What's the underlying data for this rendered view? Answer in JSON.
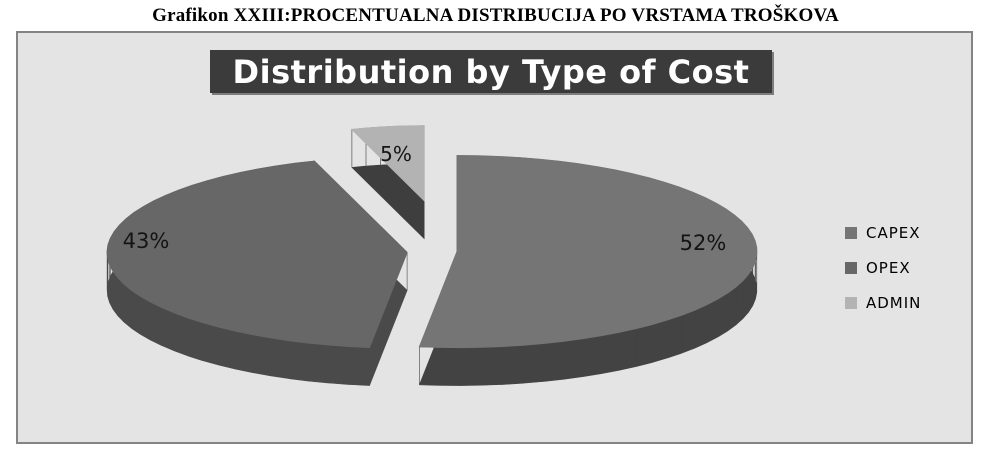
{
  "caption": "Grafikon XXIII:PROCENTUALNA DISTRIBUCIJA PO VRSTAMA TROŠKOVA",
  "chart": {
    "title": "Distribution by Type of Cost",
    "plot_background": "#e4e4e4",
    "frame_border": "#848484",
    "title_bg": "#3b3b3b",
    "title_color": "#ffffff"
  },
  "chart_data": {
    "type": "pie",
    "title": "Distribution by Type of Cost",
    "style": "3d-exploded-grayscale",
    "legend_position": "right",
    "start_angle_deg": 0,
    "direction": "clockwise",
    "categories": [
      "CAPEX",
      "OPEX",
      "ADMIN"
    ],
    "values": [
      52,
      43,
      5
    ],
    "slices": [
      {
        "label": "CAPEX",
        "value": 52,
        "pct": "52%",
        "color": "#757575",
        "side": "#434343",
        "explode": 25,
        "scale": 1
      },
      {
        "label": "OPEX",
        "value": 43,
        "pct": "43%",
        "color": "#676767",
        "side": "#4a4a4a",
        "explode": 25,
        "scale": 1
      },
      {
        "label": "ADMIN",
        "value": 5,
        "pct": "5%",
        "color": "#b3b3b3",
        "side": "#3e3e3e",
        "explode": 50,
        "scale": 0.78
      }
    ]
  }
}
